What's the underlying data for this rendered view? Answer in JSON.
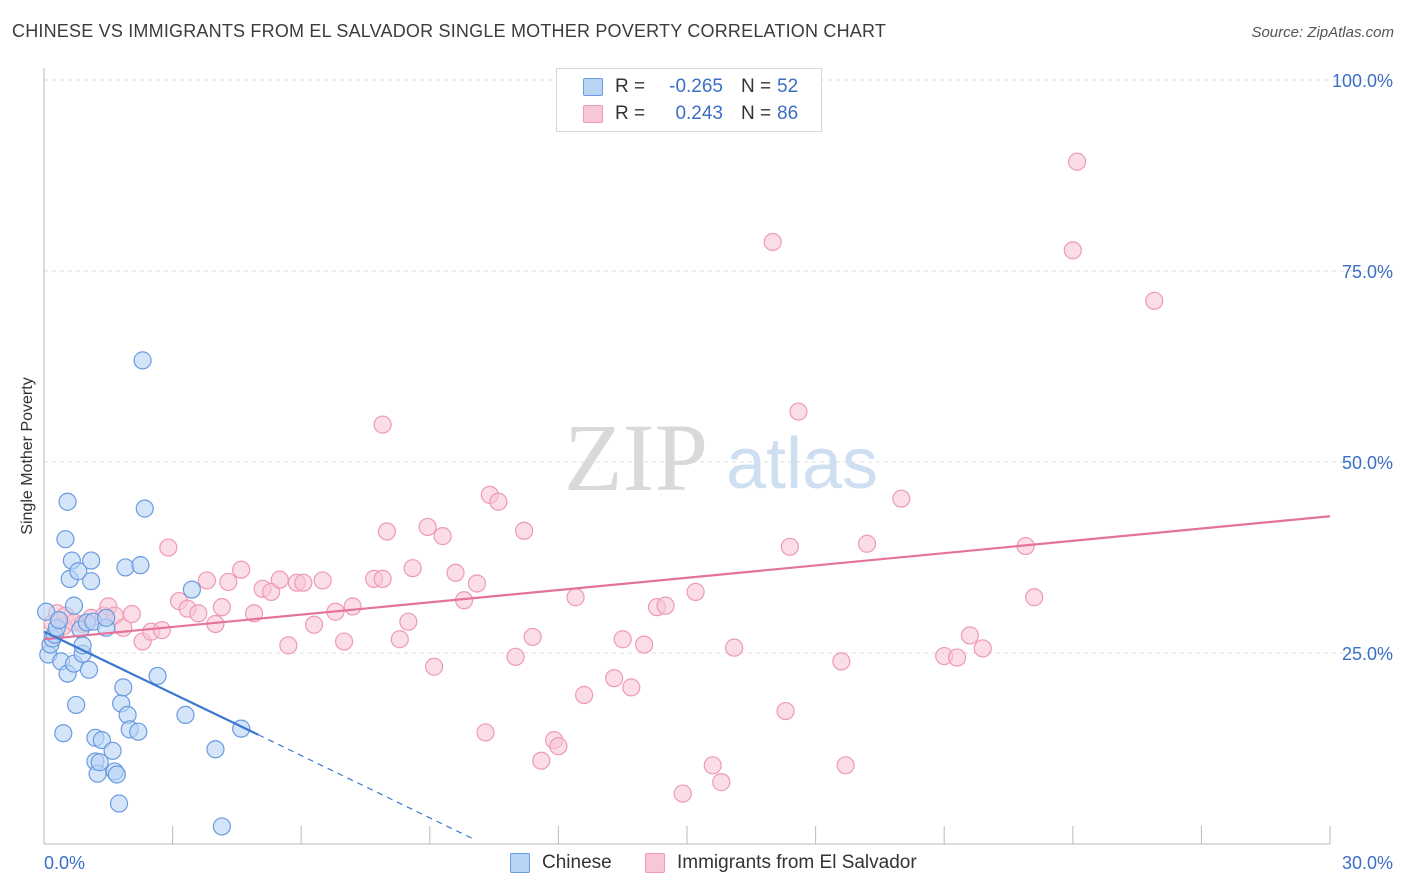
{
  "title": "CHINESE VS IMMIGRANTS FROM EL SALVADOR SINGLE MOTHER POVERTY CORRELATION CHART",
  "source": "Source: ZipAtlas.com",
  "watermark": {
    "zip": "ZIP",
    "atlas": "atlas"
  },
  "colors": {
    "chinese_fill": "#b9d3f5",
    "chinese_stroke": "#6a9be0",
    "chinese_line": "#3a78d0",
    "salvador_fill": "#f8c7d6",
    "salvador_stroke": "#ee9ab4",
    "salvador_line": "#e4729c",
    "axis_text": "#3b6fc5",
    "grid": "#dddddd"
  },
  "legend": {
    "r_label": "R =",
    "n_label": "N =",
    "series": [
      {
        "r": "-0.265",
        "n": "52"
      },
      {
        "r": "0.243",
        "n": "86"
      }
    ]
  },
  "bottom_legend": [
    "Chinese",
    "Immigrants from El Salvador"
  ],
  "chart_data": {
    "type": "scatter",
    "title": "CHINESE VS IMMIGRANTS FROM EL SALVADOR SINGLE MOTHER POVERTY CORRELATION CHART",
    "xlabel": "",
    "ylabel": "Single Mother Poverty",
    "xlim": [
      0,
      30
    ],
    "ylim": [
      0,
      100
    ],
    "x_tick_labels": [
      "0.0%",
      "30.0%"
    ],
    "y_tick_labels": [
      "25.0%",
      "50.0%",
      "75.0%",
      "100.0%"
    ],
    "y_ticks": [
      25,
      50,
      75,
      100
    ],
    "grid": "horizontal dashed",
    "legend_position": "top-center",
    "series": [
      {
        "name": "Chinese",
        "r": -0.265,
        "n": 52,
        "trend": {
          "x": [
            0,
            5.0
          ],
          "y": [
            27.8,
            14.3
          ]
        },
        "trend_extension": {
          "x": [
            5.0,
            10.0
          ],
          "y": [
            14.3,
            0.7
          ]
        },
        "points": [
          [
            0.05,
            30.4
          ],
          [
            0.1,
            24.8
          ],
          [
            0.15,
            26.1
          ],
          [
            0.2,
            26.9
          ],
          [
            0.25,
            27.4
          ],
          [
            0.3,
            28.3
          ],
          [
            0.35,
            29.3
          ],
          [
            0.4,
            23.9
          ],
          [
            0.45,
            14.5
          ],
          [
            0.5,
            39.9
          ],
          [
            0.55,
            22.3
          ],
          [
            0.55,
            44.8
          ],
          [
            0.6,
            34.7
          ],
          [
            0.65,
            37.1
          ],
          [
            0.7,
            23.6
          ],
          [
            0.7,
            31.2
          ],
          [
            0.75,
            18.2
          ],
          [
            0.8,
            35.7
          ],
          [
            0.85,
            28.1
          ],
          [
            0.9,
            24.9
          ],
          [
            0.9,
            26.0
          ],
          [
            1.0,
            29.0
          ],
          [
            1.05,
            22.8
          ],
          [
            1.1,
            34.4
          ],
          [
            1.1,
            37.1
          ],
          [
            1.15,
            29.1
          ],
          [
            1.2,
            10.8
          ],
          [
            1.2,
            13.9
          ],
          [
            1.25,
            9.2
          ],
          [
            1.3,
            10.7
          ],
          [
            1.35,
            13.6
          ],
          [
            1.45,
            28.3
          ],
          [
            1.45,
            29.6
          ],
          [
            1.6,
            12.2
          ],
          [
            1.65,
            9.5
          ],
          [
            1.7,
            9.1
          ],
          [
            1.75,
            5.3
          ],
          [
            1.8,
            18.4
          ],
          [
            1.85,
            20.5
          ],
          [
            1.9,
            36.2
          ],
          [
            1.95,
            16.9
          ],
          [
            2.0,
            15.0
          ],
          [
            2.2,
            14.7
          ],
          [
            2.25,
            36.5
          ],
          [
            2.3,
            63.3
          ],
          [
            2.35,
            43.9
          ],
          [
            2.65,
            22.0
          ],
          [
            3.3,
            16.9
          ],
          [
            3.45,
            33.3
          ],
          [
            4.0,
            12.4
          ],
          [
            4.15,
            2.3
          ],
          [
            4.6,
            15.1
          ]
        ]
      },
      {
        "name": "Immigrants from El Salvador",
        "r": 0.243,
        "n": 86,
        "trend": {
          "x": [
            0,
            30.0
          ],
          "y": [
            26.8,
            42.9
          ]
        },
        "points": [
          [
            0.2,
            28.9
          ],
          [
            0.3,
            30.2
          ],
          [
            0.45,
            28.5
          ],
          [
            0.5,
            29.9
          ],
          [
            0.7,
            29.0
          ],
          [
            0.9,
            28.8
          ],
          [
            1.1,
            29.6
          ],
          [
            1.4,
            29.9
          ],
          [
            1.5,
            31.1
          ],
          [
            1.65,
            29.9
          ],
          [
            1.85,
            28.3
          ],
          [
            2.05,
            30.1
          ],
          [
            2.3,
            26.5
          ],
          [
            2.5,
            27.8
          ],
          [
            2.75,
            28.0
          ],
          [
            2.9,
            38.8
          ],
          [
            3.15,
            31.8
          ],
          [
            3.35,
            30.8
          ],
          [
            3.6,
            30.2
          ],
          [
            3.8,
            34.5
          ],
          [
            4.0,
            28.8
          ],
          [
            4.15,
            31.0
          ],
          [
            4.3,
            34.3
          ],
          [
            4.6,
            35.9
          ],
          [
            4.9,
            30.2
          ],
          [
            5.1,
            33.4
          ],
          [
            5.3,
            33.0
          ],
          [
            5.5,
            34.6
          ],
          [
            5.7,
            26.0
          ],
          [
            5.9,
            34.2
          ],
          [
            6.05,
            34.2
          ],
          [
            6.3,
            28.7
          ],
          [
            6.5,
            34.5
          ],
          [
            6.8,
            30.4
          ],
          [
            7.0,
            26.5
          ],
          [
            7.2,
            31.1
          ],
          [
            7.7,
            34.7
          ],
          [
            7.9,
            34.7
          ],
          [
            7.9,
            54.9
          ],
          [
            8.0,
            40.9
          ],
          [
            8.3,
            26.8
          ],
          [
            8.5,
            29.1
          ],
          [
            8.6,
            36.1
          ],
          [
            8.95,
            41.5
          ],
          [
            9.1,
            23.2
          ],
          [
            9.3,
            40.3
          ],
          [
            9.6,
            35.5
          ],
          [
            9.8,
            31.9
          ],
          [
            10.1,
            34.1
          ],
          [
            10.3,
            14.6
          ],
          [
            10.4,
            45.7
          ],
          [
            10.6,
            44.8
          ],
          [
            11.0,
            24.5
          ],
          [
            11.2,
            41.0
          ],
          [
            11.4,
            27.1
          ],
          [
            11.6,
            10.9
          ],
          [
            11.9,
            13.6
          ],
          [
            12.0,
            12.8
          ],
          [
            12.4,
            32.3
          ],
          [
            12.6,
            19.5
          ],
          [
            13.3,
            21.7
          ],
          [
            13.5,
            26.8
          ],
          [
            13.7,
            20.5
          ],
          [
            14.0,
            26.1
          ],
          [
            14.3,
            31.0
          ],
          [
            14.5,
            31.2
          ],
          [
            14.9,
            6.6
          ],
          [
            15.2,
            33.0
          ],
          [
            15.6,
            10.3
          ],
          [
            15.8,
            8.1
          ],
          [
            16.1,
            25.7
          ],
          [
            17.0,
            78.8
          ],
          [
            17.3,
            17.4
          ],
          [
            17.4,
            38.9
          ],
          [
            17.6,
            56.6
          ],
          [
            18.6,
            23.9
          ],
          [
            18.7,
            10.3
          ],
          [
            19.2,
            39.3
          ],
          [
            20.0,
            45.2
          ],
          [
            21.0,
            24.6
          ],
          [
            21.3,
            24.4
          ],
          [
            21.6,
            27.3
          ],
          [
            21.9,
            25.6
          ],
          [
            22.9,
            39.0
          ],
          [
            23.1,
            32.3
          ],
          [
            24.0,
            77.7
          ],
          [
            24.1,
            89.3
          ],
          [
            25.9,
            71.1
          ]
        ]
      }
    ]
  }
}
